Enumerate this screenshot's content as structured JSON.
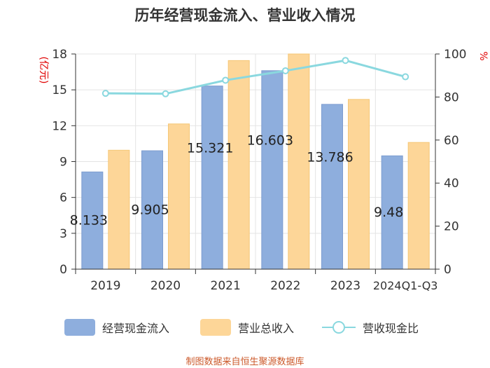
{
  "title": "历年经营现金流入、营业收入情况",
  "source": "制图数据来自恒生聚源数据库",
  "legend": {
    "series1": "经营现金流入",
    "series2": "营业总收入",
    "series3": "营收现金比"
  },
  "colors": {
    "bar1": "#8eaedd",
    "bar2": "#fdd698",
    "line": "#8ad8df",
    "axis": "#333333",
    "unit": "#e00000",
    "source": "#cc5a2b"
  },
  "chart_data": {
    "type": "bar",
    "categories": [
      "2019",
      "2020",
      "2021",
      "2022",
      "2023",
      "2024Q1-Q3"
    ],
    "series": [
      {
        "name": "经营现金流入",
        "values": [
          8.133,
          9.905,
          15.321,
          16.603,
          13.786,
          9.48
        ],
        "labels": [
          "8.133",
          "9.905",
          "15.321",
          "16.603",
          "13.786",
          "9.48"
        ]
      },
      {
        "name": "营业总收入",
        "values": [
          9.95,
          12.15,
          17.45,
          18.0,
          14.2,
          10.6
        ]
      },
      {
        "name": "营收现金比",
        "type": "line",
        "axis": "right",
        "values": [
          81.7,
          81.5,
          87.8,
          92.2,
          97.0,
          89.4
        ]
      }
    ],
    "left_axis": {
      "unit": "(亿元)",
      "ylim": [
        0,
        18
      ],
      "ticks": [
        0,
        3,
        6,
        9,
        12,
        15,
        18
      ]
    },
    "right_axis": {
      "unit": "%",
      "ylim": [
        0,
        100
      ],
      "ticks": [
        0,
        20,
        40,
        60,
        80,
        100
      ]
    },
    "grid": true,
    "legend_position": "bottom"
  }
}
